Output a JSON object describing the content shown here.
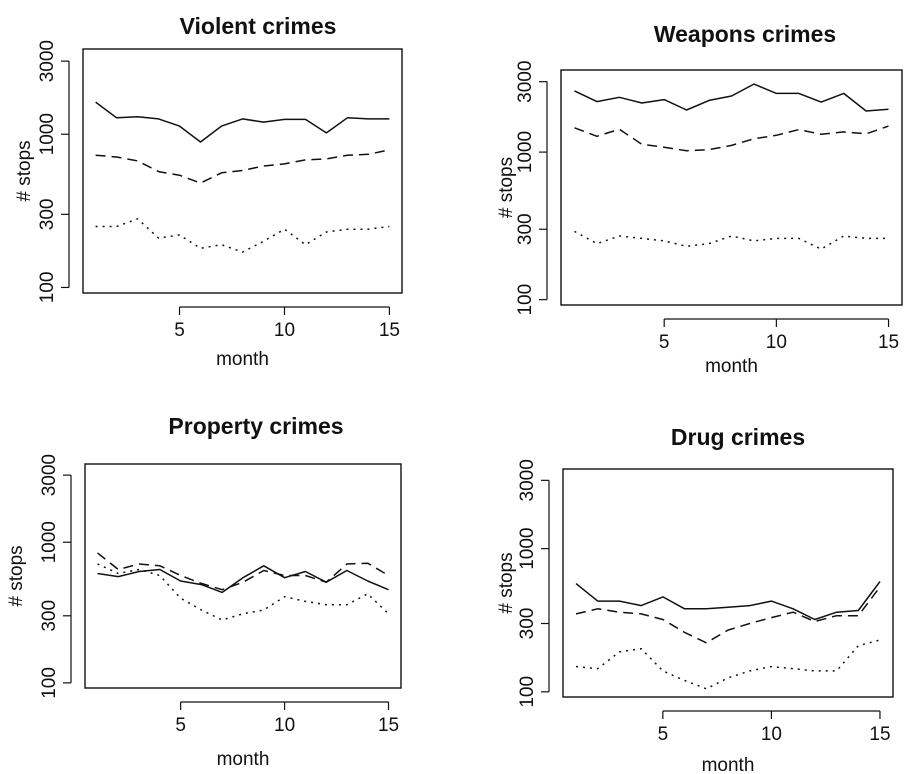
{
  "chart_data": [
    {
      "type": "line",
      "title": "Violent crimes",
      "xlabel": "month",
      "ylabel": "# stops",
      "y_scale": "log",
      "xlim": [
        0.4,
        15.6
      ],
      "ylim": [
        92,
        3600
      ],
      "x_ticks": [
        "5",
        "10",
        "15"
      ],
      "y_ticks": [
        "100",
        "300",
        "1000",
        "3000"
      ],
      "grid": false,
      "x": [
        1,
        2,
        3,
        4,
        5,
        6,
        7,
        8,
        9,
        10,
        11,
        12,
        13,
        14,
        15
      ],
      "series": [
        {
          "line_style": "solid",
          "values": [
            1620,
            1280,
            1300,
            1260,
            1130,
            890,
            1130,
            1260,
            1200,
            1250,
            1250,
            1020,
            1280,
            1260,
            1260
          ]
        },
        {
          "line_style": "dashed",
          "values": [
            730,
            710,
            670,
            570,
            540,
            480,
            560,
            580,
            620,
            640,
            680,
            690,
            730,
            740,
            790
          ]
        },
        {
          "line_style": "dotted",
          "values": [
            250,
            250,
            280,
            210,
            220,
            180,
            190,
            170,
            200,
            240,
            190,
            230,
            240,
            240,
            250
          ]
        }
      ]
    },
    {
      "type": "line",
      "title": "Weapons crimes",
      "xlabel": "month",
      "ylabel": "# stops",
      "y_scale": "log",
      "xlim": [
        0.4,
        15.6
      ],
      "ylim": [
        92,
        3600
      ],
      "x_ticks": [
        "5",
        "10",
        "15"
      ],
      "y_ticks": [
        "100",
        "300",
        "1000",
        "3000"
      ],
      "grid": false,
      "x": [
        1,
        2,
        3,
        4,
        5,
        6,
        7,
        8,
        9,
        10,
        11,
        12,
        13,
        14,
        15
      ],
      "series": [
        {
          "line_style": "solid",
          "values": [
            2600,
            2200,
            2350,
            2150,
            2270,
            1930,
            2240,
            2400,
            2890,
            2500,
            2500,
            2180,
            2500,
            1900,
            1950
          ]
        },
        {
          "line_style": "dashed",
          "values": [
            1460,
            1280,
            1430,
            1130,
            1080,
            1020,
            1040,
            1110,
            1230,
            1300,
            1420,
            1320,
            1370,
            1330,
            1500
          ]
        },
        {
          "line_style": "dotted",
          "values": [
            290,
            240,
            270,
            260,
            250,
            230,
            240,
            270,
            250,
            260,
            260,
            220,
            270,
            260,
            260
          ]
        }
      ]
    },
    {
      "type": "line",
      "title": "Property crimes",
      "xlabel": "month",
      "ylabel": "# stops",
      "y_scale": "log",
      "xlim": [
        0.4,
        15.6
      ],
      "ylim": [
        92,
        3600
      ],
      "x_ticks": [
        "5",
        "10",
        "15"
      ],
      "y_ticks": [
        "100",
        "300",
        "1000",
        "3000"
      ],
      "grid": false,
      "x": [
        1,
        2,
        3,
        4,
        5,
        6,
        7,
        8,
        9,
        10,
        11,
        12,
        13,
        14,
        15
      ],
      "series": [
        {
          "line_style": "solid",
          "values": [
            600,
            570,
            620,
            640,
            530,
            500,
            440,
            560,
            680,
            560,
            620,
            520,
            630,
            530,
            460
          ]
        },
        {
          "line_style": "dashed",
          "values": [
            840,
            640,
            700,
            680,
            580,
            510,
            460,
            520,
            630,
            580,
            580,
            520,
            700,
            710,
            580
          ]
        },
        {
          "line_style": "dotted",
          "values": [
            700,
            600,
            640,
            580,
            400,
            330,
            280,
            310,
            330,
            410,
            380,
            360,
            360,
            430,
            310
          ]
        }
      ]
    },
    {
      "type": "line",
      "title": "Drug crimes",
      "xlabel": "month",
      "ylabel": "# stops",
      "y_scale": "log",
      "xlim": [
        0.4,
        15.6
      ],
      "ylim": [
        92,
        3600
      ],
      "x_ticks": [
        "5",
        "10",
        "15"
      ],
      "y_ticks": [
        "100",
        "300",
        "1000",
        "3000"
      ],
      "grid": false,
      "x": [
        1,
        2,
        3,
        4,
        5,
        6,
        7,
        8,
        9,
        10,
        11,
        12,
        13,
        14,
        15
      ],
      "series": [
        {
          "line_style": "solid",
          "values": [
            570,
            430,
            430,
            400,
            460,
            380,
            380,
            390,
            400,
            430,
            380,
            320,
            360,
            370,
            590
          ]
        },
        {
          "line_style": "dashed",
          "values": [
            350,
            380,
            360,
            350,
            320,
            260,
            220,
            270,
            300,
            330,
            360,
            310,
            340,
            340,
            540
          ]
        },
        {
          "line_style": "dotted",
          "values": [
            150,
            145,
            190,
            200,
            140,
            120,
            105,
            125,
            140,
            150,
            145,
            140,
            140,
            210,
            230
          ]
        }
      ]
    }
  ]
}
